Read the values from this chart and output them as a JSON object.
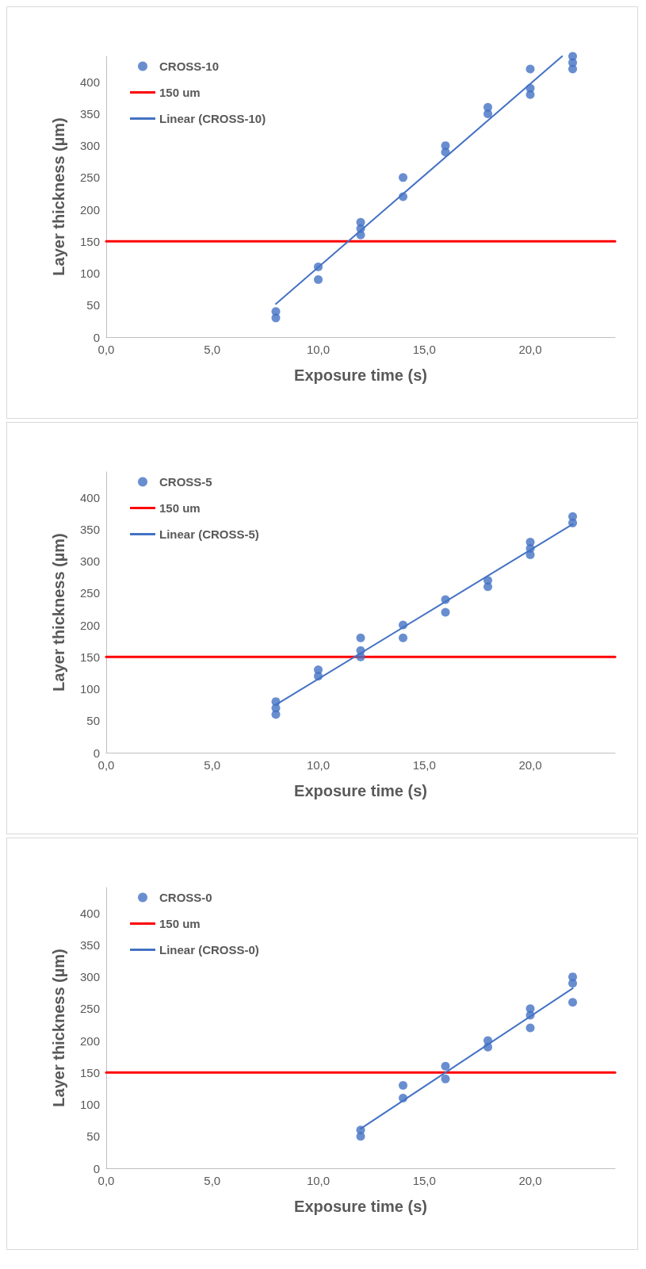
{
  "chart_data": [
    {
      "type": "scatter",
      "xlabel": "Exposure time (s)",
      "ylabel": "Layer thickness (µm)",
      "xlim": [
        0,
        24
      ],
      "xticks": [
        {
          "value": 0,
          "label": "0,0"
        },
        {
          "value": 5,
          "label": "5,0"
        },
        {
          "value": 10,
          "label": "10,0"
        },
        {
          "value": 15,
          "label": "15,0"
        },
        {
          "value": 20,
          "label": "20,0"
        }
      ],
      "ylim": [
        0,
        440
      ],
      "yticks": [
        0,
        50,
        100,
        150,
        200,
        250,
        300,
        350,
        400
      ],
      "grid": false,
      "legend": "top left",
      "series": [
        {
          "name": "CROSS-10",
          "marker": "circle",
          "color": "#4472c4",
          "x": [
            8,
            8,
            10,
            10,
            12,
            12,
            12,
            14,
            14,
            16,
            16,
            18,
            18,
            20,
            20,
            20,
            22,
            22,
            22
          ],
          "values": [
            30,
            40,
            90,
            110,
            160,
            170,
            180,
            220,
            250,
            290,
            300,
            350,
            360,
            380,
            390,
            420,
            420,
            430,
            440
          ]
        },
        {
          "name": "150 um",
          "type": "line",
          "marker": "none",
          "color": "#ff0000",
          "x": [
            0,
            24
          ],
          "values": [
            150,
            150
          ]
        },
        {
          "name": "Linear (CROSS-10)",
          "type": "line",
          "marker": "none",
          "color": "#4472c4",
          "x": [
            8,
            21.5
          ],
          "values": [
            52,
            440
          ]
        }
      ]
    },
    {
      "type": "scatter",
      "xlabel": "Exposure time (s)",
      "ylabel": "Layer thickness (µm)",
      "xlim": [
        0,
        24
      ],
      "xticks": [
        {
          "value": 0,
          "label": "0,0"
        },
        {
          "value": 5,
          "label": "5,0"
        },
        {
          "value": 10,
          "label": "10,0"
        },
        {
          "value": 15,
          "label": "15,0"
        },
        {
          "value": 20,
          "label": "20,0"
        }
      ],
      "ylim": [
        0,
        440
      ],
      "yticks": [
        0,
        50,
        100,
        150,
        200,
        250,
        300,
        350,
        400
      ],
      "grid": false,
      "legend": "top left",
      "series": [
        {
          "name": "CROSS-5",
          "marker": "circle",
          "color": "#4472c4",
          "x": [
            8,
            8,
            8,
            10,
            10,
            12,
            12,
            12,
            14,
            14,
            16,
            16,
            18,
            18,
            20,
            20,
            20,
            22,
            22
          ],
          "values": [
            60,
            70,
            80,
            120,
            130,
            150,
            160,
            180,
            180,
            200,
            220,
            240,
            260,
            270,
            310,
            320,
            330,
            360,
            370
          ]
        },
        {
          "name": "150 um",
          "type": "line",
          "marker": "none",
          "color": "#ff0000",
          "x": [
            0,
            24
          ],
          "values": [
            150,
            150
          ]
        },
        {
          "name": "Linear (CROSS-5)",
          "type": "line",
          "marker": "none",
          "color": "#4472c4",
          "x": [
            8,
            22
          ],
          "values": [
            75,
            358
          ]
        }
      ]
    },
    {
      "type": "scatter",
      "xlabel": "Exposure time (s)",
      "ylabel": "Layer thickness (µm)",
      "xlim": [
        0,
        24
      ],
      "xticks": [
        {
          "value": 0,
          "label": "0,0"
        },
        {
          "value": 5,
          "label": "5,0"
        },
        {
          "value": 10,
          "label": "10,0"
        },
        {
          "value": 15,
          "label": "15,0"
        },
        {
          "value": 20,
          "label": "20,0"
        }
      ],
      "ylim": [
        0,
        440
      ],
      "yticks": [
        0,
        50,
        100,
        150,
        200,
        250,
        300,
        350,
        400
      ],
      "grid": false,
      "legend": "top left",
      "series": [
        {
          "name": "CROSS-0",
          "marker": "circle",
          "color": "#4472c4",
          "x": [
            12,
            12,
            14,
            14,
            16,
            16,
            18,
            18,
            20,
            20,
            20,
            22,
            22,
            22
          ],
          "values": [
            50,
            60,
            110,
            130,
            140,
            160,
            190,
            200,
            220,
            240,
            250,
            260,
            290,
            300
          ]
        },
        {
          "name": "150 um",
          "type": "line",
          "marker": "none",
          "color": "#ff0000",
          "x": [
            0,
            24
          ],
          "values": [
            150,
            150
          ]
        },
        {
          "name": "Linear (CROSS-0)",
          "type": "line",
          "marker": "none",
          "color": "#4472c4",
          "x": [
            12,
            22
          ],
          "values": [
            62,
            282
          ]
        }
      ]
    }
  ]
}
